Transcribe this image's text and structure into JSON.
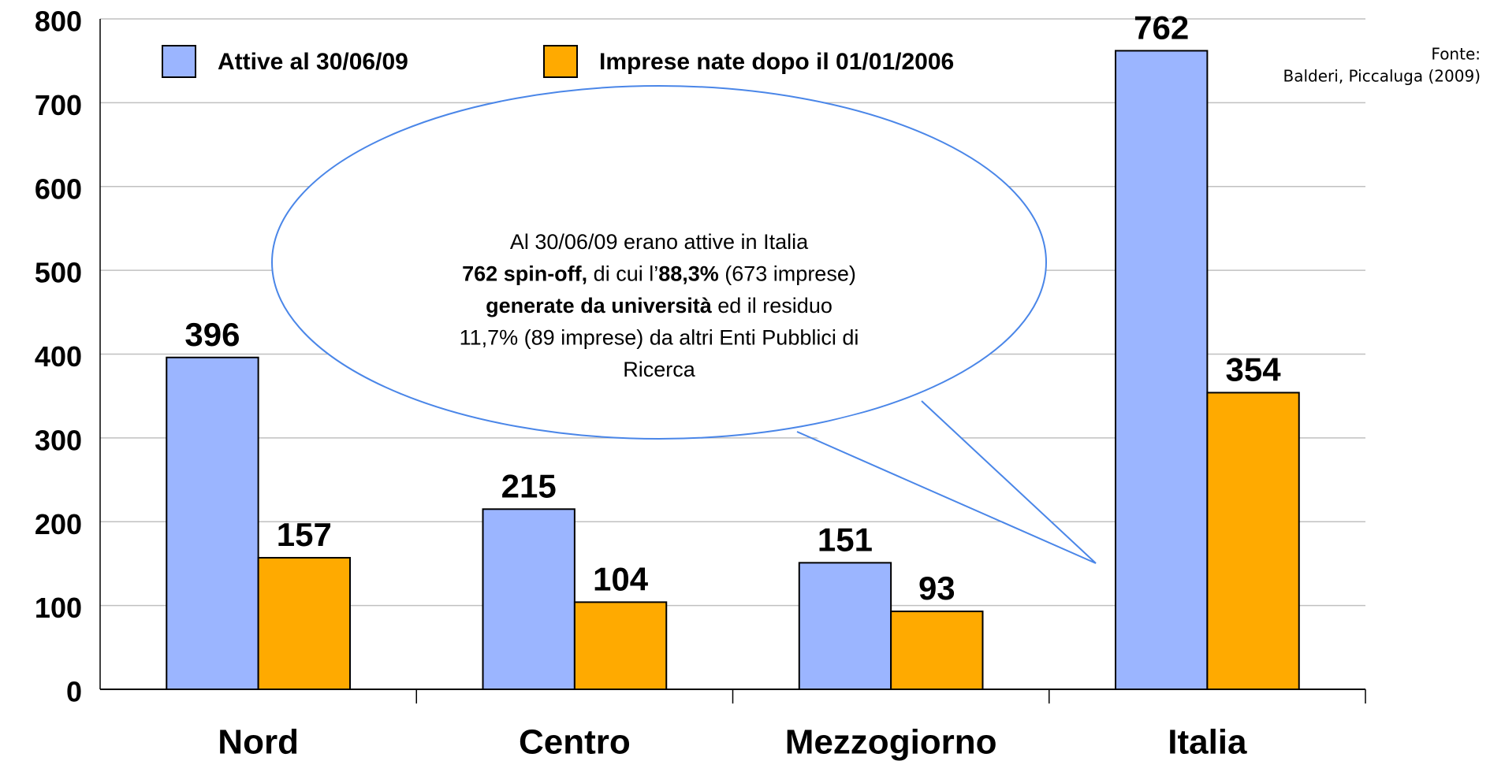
{
  "chart_data": {
    "type": "bar",
    "categories": [
      "Nord",
      "Centro",
      "Mezzogiorno",
      "Italia"
    ],
    "series": [
      {
        "name": "Attive al 30/06/09",
        "color": "#9bb5ff",
        "values": [
          396,
          215,
          151,
          762
        ]
      },
      {
        "name": "Imprese nate dopo il 01/01/2006",
        "color": "#ffaa00",
        "values": [
          157,
          104,
          93,
          354
        ]
      }
    ],
    "ylim": [
      0,
      800
    ],
    "yticks": [
      0,
      100,
      200,
      300,
      400,
      500,
      600,
      700,
      800
    ],
    "grid": true,
    "legend": "top",
    "source": [
      "Fonte:",
      "Balderi, Piccaluga (2009)"
    ],
    "annotation": [
      [
        {
          "text": "Al 30/06/09 erano attive in Italia",
          "bold": false
        }
      ],
      [
        {
          "text": "762 spin-off,",
          "bold": true
        },
        {
          "text": " di cui l’",
          "bold": false
        },
        {
          "text": "88,3%",
          "bold": true
        },
        {
          "text": " (673 imprese)",
          "bold": false
        }
      ],
      [
        {
          "text": "generate da università",
          "bold": true
        },
        {
          "text": " ed il residuo",
          "bold": false
        }
      ],
      [
        {
          "text": "11,7% (89 imprese) da altri Enti Pubblici di",
          "bold": false
        }
      ],
      [
        {
          "text": "Ricerca",
          "bold": false
        }
      ]
    ]
  }
}
